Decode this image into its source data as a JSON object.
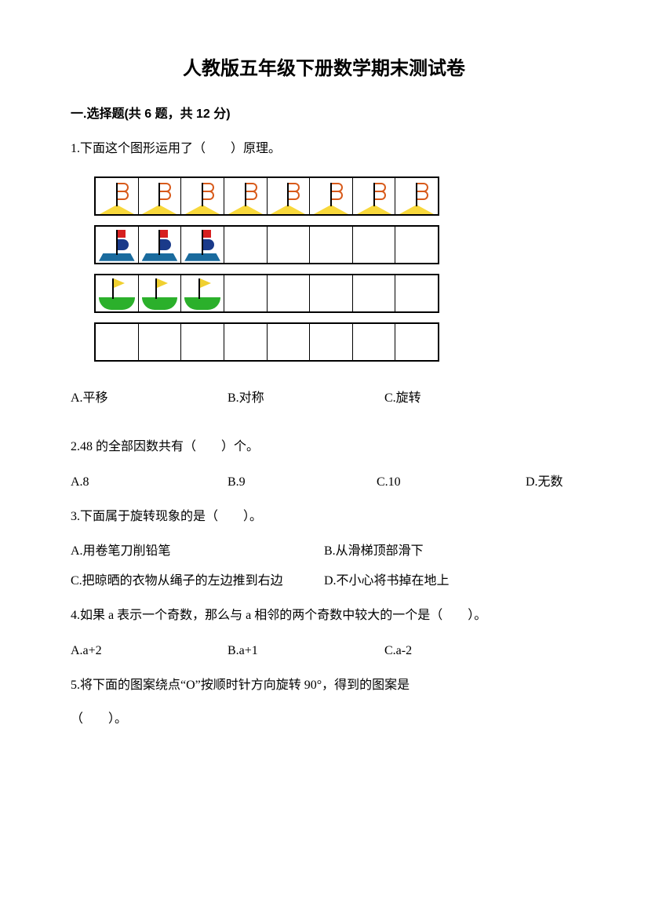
{
  "title": "人教版五年级下册数学期末测试卷",
  "section1": {
    "header": "一.选择题(共 6 题，共 12 分)",
    "q1": {
      "text": "1.下面这个图形运用了（　　）原理。",
      "opts": {
        "a": "A.平移",
        "b": "B.对称",
        "c": "C.旋转"
      },
      "row1_count": 8,
      "row2_count": 3,
      "row2_empty": 5,
      "row3_count": 3,
      "row3_empty": 5,
      "row4_empty": 8,
      "colors": {
        "yellow": "#f8d83c",
        "orange": "#d85a1a",
        "blue": "#1a6b9e",
        "darkblue": "#1a3a8a",
        "red": "#d62020",
        "green": "#2bb02b",
        "flag_yellow": "#f0d030"
      }
    },
    "q2": {
      "text": "2.48 的全部因数共有（　　）个。",
      "opts": {
        "a": "A.8",
        "b": "B.9",
        "c": "C.10",
        "d": "D.无数"
      }
    },
    "q3": {
      "text": "3.下面属于旋转现象的是（　　）。",
      "opts": {
        "a": "A.用卷笔刀削铅笔",
        "b": "B.从滑梯顶部滑下",
        "c": "C.把晾晒的衣物从绳子的左边推到右边",
        "d": "D.不小心将书掉在地上"
      }
    },
    "q4": {
      "text": "4.如果 a 表示一个奇数，那么与 a 相邻的两个奇数中较大的一个是（　　）。",
      "opts": {
        "a": "A.a+2",
        "b": "B.a+1",
        "c": "C.a-2"
      }
    },
    "q5": {
      "text_l1": "5.将下面的图案绕点“O”按顺时针方向旋转 90°，得到的图案是",
      "text_l2": "（　　）。"
    }
  }
}
